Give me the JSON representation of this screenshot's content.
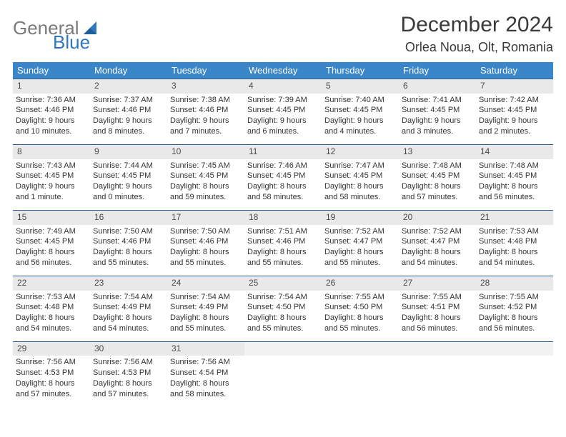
{
  "brand": {
    "text_general": "General",
    "text_blue": "Blue"
  },
  "title": "December 2024",
  "location": "Orlea Noua, Olt, Romania",
  "colors": {
    "header_bg": "#3b86c8",
    "header_text": "#ffffff",
    "daynum_bg": "#e9e9e9",
    "rule": "#2f5f8a",
    "brand_gray": "#7a7a7a",
    "brand_blue": "#2f78bd",
    "body_text": "#333333",
    "page_bg": "#ffffff"
  },
  "day_names": [
    "Sunday",
    "Monday",
    "Tuesday",
    "Wednesday",
    "Thursday",
    "Friday",
    "Saturday"
  ],
  "weeks": [
    [
      {
        "n": "1",
        "sr": "Sunrise: 7:36 AM",
        "ss": "Sunset: 4:46 PM",
        "d1": "Daylight: 9 hours",
        "d2": "and 10 minutes."
      },
      {
        "n": "2",
        "sr": "Sunrise: 7:37 AM",
        "ss": "Sunset: 4:46 PM",
        "d1": "Daylight: 9 hours",
        "d2": "and 8 minutes."
      },
      {
        "n": "3",
        "sr": "Sunrise: 7:38 AM",
        "ss": "Sunset: 4:46 PM",
        "d1": "Daylight: 9 hours",
        "d2": "and 7 minutes."
      },
      {
        "n": "4",
        "sr": "Sunrise: 7:39 AM",
        "ss": "Sunset: 4:45 PM",
        "d1": "Daylight: 9 hours",
        "d2": "and 6 minutes."
      },
      {
        "n": "5",
        "sr": "Sunrise: 7:40 AM",
        "ss": "Sunset: 4:45 PM",
        "d1": "Daylight: 9 hours",
        "d2": "and 4 minutes."
      },
      {
        "n": "6",
        "sr": "Sunrise: 7:41 AM",
        "ss": "Sunset: 4:45 PM",
        "d1": "Daylight: 9 hours",
        "d2": "and 3 minutes."
      },
      {
        "n": "7",
        "sr": "Sunrise: 7:42 AM",
        "ss": "Sunset: 4:45 PM",
        "d1": "Daylight: 9 hours",
        "d2": "and 2 minutes."
      }
    ],
    [
      {
        "n": "8",
        "sr": "Sunrise: 7:43 AM",
        "ss": "Sunset: 4:45 PM",
        "d1": "Daylight: 9 hours",
        "d2": "and 1 minute."
      },
      {
        "n": "9",
        "sr": "Sunrise: 7:44 AM",
        "ss": "Sunset: 4:45 PM",
        "d1": "Daylight: 9 hours",
        "d2": "and 0 minutes."
      },
      {
        "n": "10",
        "sr": "Sunrise: 7:45 AM",
        "ss": "Sunset: 4:45 PM",
        "d1": "Daylight: 8 hours",
        "d2": "and 59 minutes."
      },
      {
        "n": "11",
        "sr": "Sunrise: 7:46 AM",
        "ss": "Sunset: 4:45 PM",
        "d1": "Daylight: 8 hours",
        "d2": "and 58 minutes."
      },
      {
        "n": "12",
        "sr": "Sunrise: 7:47 AM",
        "ss": "Sunset: 4:45 PM",
        "d1": "Daylight: 8 hours",
        "d2": "and 58 minutes."
      },
      {
        "n": "13",
        "sr": "Sunrise: 7:48 AM",
        "ss": "Sunset: 4:45 PM",
        "d1": "Daylight: 8 hours",
        "d2": "and 57 minutes."
      },
      {
        "n": "14",
        "sr": "Sunrise: 7:48 AM",
        "ss": "Sunset: 4:45 PM",
        "d1": "Daylight: 8 hours",
        "d2": "and 56 minutes."
      }
    ],
    [
      {
        "n": "15",
        "sr": "Sunrise: 7:49 AM",
        "ss": "Sunset: 4:45 PM",
        "d1": "Daylight: 8 hours",
        "d2": "and 56 minutes."
      },
      {
        "n": "16",
        "sr": "Sunrise: 7:50 AM",
        "ss": "Sunset: 4:46 PM",
        "d1": "Daylight: 8 hours",
        "d2": "and 55 minutes."
      },
      {
        "n": "17",
        "sr": "Sunrise: 7:50 AM",
        "ss": "Sunset: 4:46 PM",
        "d1": "Daylight: 8 hours",
        "d2": "and 55 minutes."
      },
      {
        "n": "18",
        "sr": "Sunrise: 7:51 AM",
        "ss": "Sunset: 4:46 PM",
        "d1": "Daylight: 8 hours",
        "d2": "and 55 minutes."
      },
      {
        "n": "19",
        "sr": "Sunrise: 7:52 AM",
        "ss": "Sunset: 4:47 PM",
        "d1": "Daylight: 8 hours",
        "d2": "and 55 minutes."
      },
      {
        "n": "20",
        "sr": "Sunrise: 7:52 AM",
        "ss": "Sunset: 4:47 PM",
        "d1": "Daylight: 8 hours",
        "d2": "and 54 minutes."
      },
      {
        "n": "21",
        "sr": "Sunrise: 7:53 AM",
        "ss": "Sunset: 4:48 PM",
        "d1": "Daylight: 8 hours",
        "d2": "and 54 minutes."
      }
    ],
    [
      {
        "n": "22",
        "sr": "Sunrise: 7:53 AM",
        "ss": "Sunset: 4:48 PM",
        "d1": "Daylight: 8 hours",
        "d2": "and 54 minutes."
      },
      {
        "n": "23",
        "sr": "Sunrise: 7:54 AM",
        "ss": "Sunset: 4:49 PM",
        "d1": "Daylight: 8 hours",
        "d2": "and 54 minutes."
      },
      {
        "n": "24",
        "sr": "Sunrise: 7:54 AM",
        "ss": "Sunset: 4:49 PM",
        "d1": "Daylight: 8 hours",
        "d2": "and 55 minutes."
      },
      {
        "n": "25",
        "sr": "Sunrise: 7:54 AM",
        "ss": "Sunset: 4:50 PM",
        "d1": "Daylight: 8 hours",
        "d2": "and 55 minutes."
      },
      {
        "n": "26",
        "sr": "Sunrise: 7:55 AM",
        "ss": "Sunset: 4:50 PM",
        "d1": "Daylight: 8 hours",
        "d2": "and 55 minutes."
      },
      {
        "n": "27",
        "sr": "Sunrise: 7:55 AM",
        "ss": "Sunset: 4:51 PM",
        "d1": "Daylight: 8 hours",
        "d2": "and 56 minutes."
      },
      {
        "n": "28",
        "sr": "Sunrise: 7:55 AM",
        "ss": "Sunset: 4:52 PM",
        "d1": "Daylight: 8 hours",
        "d2": "and 56 minutes."
      }
    ],
    [
      {
        "n": "29",
        "sr": "Sunrise: 7:56 AM",
        "ss": "Sunset: 4:53 PM",
        "d1": "Daylight: 8 hours",
        "d2": "and 57 minutes."
      },
      {
        "n": "30",
        "sr": "Sunrise: 7:56 AM",
        "ss": "Sunset: 4:53 PM",
        "d1": "Daylight: 8 hours",
        "d2": "and 57 minutes."
      },
      {
        "n": "31",
        "sr": "Sunrise: 7:56 AM",
        "ss": "Sunset: 4:54 PM",
        "d1": "Daylight: 8 hours",
        "d2": "and 58 minutes."
      },
      null,
      null,
      null,
      null
    ]
  ]
}
